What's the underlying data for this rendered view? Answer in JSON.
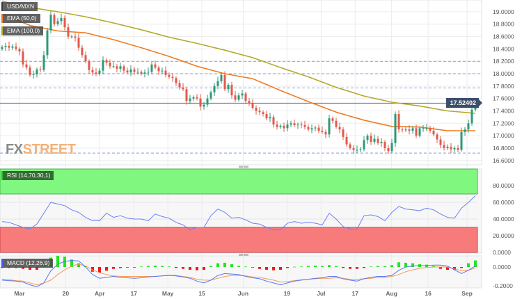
{
  "legend": {
    "symbol": "USD/MXN",
    "ema50": "EMA (50,0)",
    "ema100": "EMA (100,0)",
    "rsi": "RSI (14,70,30,1)",
    "macd": "MACD (12,26,9)"
  },
  "watermark": {
    "part1": "FX",
    "part2": "STREET"
  },
  "price_tag": "17.52402",
  "colors": {
    "up": "#2b9a77",
    "down": "#e05a4b",
    "ema50": "#f07c22",
    "ema100": "#b4a92a",
    "rsi_line": "#6b7ff5",
    "overbought": "#80f880",
    "oversold": "#f77b7b",
    "macd_line": "#5a78f0",
    "signal_line": "#f59a5a",
    "hist_up": "#1ee81e",
    "hist_down": "#f01a1a",
    "level_line": "#7f9fd8",
    "price_line": "#5a6f8f"
  },
  "chart_data": [
    {
      "type": "candlestick",
      "title": "USD/MXN",
      "xlim": [
        "2023-02-21",
        "2023-09-07"
      ],
      "ylim": [
        16.53,
        19.19
      ],
      "grid": true,
      "y_ticks": [
        "19.0000",
        "18.8000",
        "18.6000",
        "18.4000",
        "18.2000",
        "18.0000",
        "17.8000",
        "17.6000",
        "17.4000",
        "17.2000",
        "17.0000",
        "16.8000",
        "16.6000"
      ],
      "x_ticks": [
        {
          "label": "Mar",
          "date": "2023-03-01"
        },
        {
          "label": "20",
          "date": "2023-03-20"
        },
        {
          "label": "Apr",
          "date": "2023-04-03"
        },
        {
          "label": "17",
          "date": "2023-04-17"
        },
        {
          "label": "May",
          "date": "2023-05-01"
        },
        {
          "label": "15",
          "date": "2023-05-15"
        },
        {
          "label": "Jun",
          "date": "2023-06-01"
        },
        {
          "label": "19",
          "date": "2023-06-19"
        },
        {
          "label": "Jul",
          "date": "2023-07-03"
        },
        {
          "label": "17",
          "date": "2023-07-17"
        },
        {
          "label": "Aug",
          "date": "2023-08-01"
        },
        {
          "label": "16",
          "date": "2023-08-16"
        },
        {
          "label": "Sep",
          "date": "2023-09-01"
        }
      ],
      "first_open": 18.4,
      "closes": [
        18.43,
        18.45,
        18.42,
        18.44,
        18.4,
        18.36,
        18.15,
        18.1,
        17.98,
        17.99,
        18.07,
        18.06,
        18.3,
        18.7,
        18.95,
        18.8,
        18.85,
        18.9,
        18.75,
        18.6,
        18.6,
        18.58,
        18.42,
        18.3,
        18.2,
        18.06,
        18.02,
        18.0,
        18.05,
        18.22,
        18.18,
        18.12,
        18.12,
        18.08,
        18.12,
        18.05,
        18.02,
        18.07,
        18.03,
        18.03,
        18.0,
        18.02,
        18.03,
        18.15,
        18.1,
        18.04,
        18.05,
        17.98,
        17.95,
        17.93,
        17.85,
        17.78,
        17.75,
        17.56,
        17.6,
        17.62,
        17.6,
        17.47,
        17.5,
        17.6,
        17.7,
        17.8,
        17.88,
        17.98,
        17.75,
        17.82,
        17.65,
        17.58,
        17.65,
        17.68,
        17.56,
        17.52,
        17.45,
        17.4,
        17.38,
        17.35,
        17.28,
        17.3,
        17.18,
        17.14,
        17.16,
        17.12,
        17.18,
        17.2,
        17.17,
        17.18,
        17.17,
        17.14,
        17.1,
        17.12,
        17.13,
        17.08,
        17.06,
        17.02,
        17.28,
        17.24,
        17.14,
        17.1,
        16.98,
        16.86,
        16.8,
        16.77,
        16.77,
        16.78,
        16.93,
        17.0,
        16.9,
        16.95,
        16.88,
        16.9,
        16.8,
        16.75,
        16.88,
        17.35,
        17.1,
        17.09,
        17.1,
        17.08,
        17.12,
        17.0,
        17.12,
        17.12,
        17.12,
        17.08,
        17.02,
        16.94,
        16.85,
        16.8,
        16.82,
        16.78,
        16.8,
        16.77,
        17.06,
        17.1,
        17.2,
        17.42,
        17.524
      ],
      "ema50": [
        18.96,
        18.78,
        18.69,
        18.66,
        18.55,
        18.42,
        18.28,
        18.12,
        18.0,
        17.92,
        17.73,
        17.55,
        17.38,
        17.25,
        17.15,
        17.14,
        17.08,
        17.08
      ],
      "ema100": [
        19.17,
        19.07,
        19.0,
        18.92,
        18.82,
        18.71,
        18.59,
        18.49,
        18.38,
        18.26,
        18.1,
        17.95,
        17.78,
        17.64,
        17.54,
        17.48,
        17.4,
        17.36
      ],
      "levels": [
        18.2,
        18.0,
        17.77,
        16.72
      ],
      "last_price": 17.52402
    },
    {
      "type": "line",
      "title": "RSI (14,70,30,1)",
      "ylim": [
        0,
        100
      ],
      "overbought": 70,
      "oversold": 30,
      "y_ticks": [
        "80.0000",
        "60.0000",
        "40.0000",
        "20.0000",
        "0.0000"
      ],
      "values": [
        37,
        36,
        33,
        30,
        28,
        34,
        47,
        60,
        58,
        56,
        51,
        48,
        42,
        38,
        38,
        47,
        42,
        44,
        41,
        40,
        40,
        38,
        46,
        43,
        41,
        36,
        33,
        27,
        30,
        30,
        44,
        52,
        48,
        41,
        42,
        39,
        35,
        34,
        30,
        27,
        27,
        35,
        37,
        35,
        36,
        35,
        33,
        47,
        40,
        31,
        28,
        28,
        44,
        45,
        43,
        38,
        48,
        55,
        52,
        51,
        50,
        53,
        51,
        46,
        42,
        41,
        53,
        60,
        68
      ]
    },
    {
      "type": "bar+line",
      "title": "MACD (12,26,9)",
      "ylim": [
        -0.22,
        0.12
      ],
      "y_ticks": [
        "0.0000",
        "-0.2000"
      ],
      "macd": [
        -0.14,
        -0.145,
        -0.15,
        -0.16,
        -0.19,
        -0.21,
        -0.17,
        -0.04,
        0.03,
        0.06,
        0.07,
        0.065,
        0.0,
        -0.08,
        -0.12,
        -0.11,
        -0.1,
        -0.11,
        -0.115,
        -0.12,
        -0.115,
        -0.105,
        -0.1,
        -0.095,
        -0.09,
        -0.095,
        -0.105,
        -0.12,
        -0.15,
        -0.17,
        -0.14,
        -0.09,
        -0.07,
        -0.075,
        -0.08,
        -0.1,
        -0.115,
        -0.125,
        -0.15,
        -0.17,
        -0.19,
        -0.17,
        -0.15,
        -0.14,
        -0.13,
        -0.12,
        -0.115,
        -0.1,
        -0.1,
        -0.125,
        -0.14,
        -0.15,
        -0.125,
        -0.11,
        -0.1,
        -0.1,
        -0.09,
        -0.035,
        0.0,
        0.01,
        0.015,
        0.015,
        0.02,
        0.02,
        0.01,
        -0.03,
        -0.07,
        -0.035,
        0.01
      ],
      "signal": [
        -0.13,
        -0.135,
        -0.145,
        -0.15,
        -0.17,
        -0.19,
        -0.17,
        -0.14,
        -0.08,
        -0.03,
        0.01,
        0.03,
        0.01,
        -0.03,
        -0.06,
        -0.08,
        -0.095,
        -0.1,
        -0.1,
        -0.1,
        -0.1,
        -0.1,
        -0.1,
        -0.095,
        -0.09,
        -0.09,
        -0.1,
        -0.11,
        -0.13,
        -0.14,
        -0.14,
        -0.12,
        -0.1,
        -0.09,
        -0.09,
        -0.095,
        -0.105,
        -0.11,
        -0.125,
        -0.14,
        -0.16,
        -0.155,
        -0.145,
        -0.135,
        -0.13,
        -0.125,
        -0.12,
        -0.12,
        -0.115,
        -0.12,
        -0.13,
        -0.13,
        -0.125,
        -0.12,
        -0.11,
        -0.11,
        -0.1,
        -0.08,
        -0.05,
        -0.03,
        -0.015,
        -0.005,
        0.0,
        0.0,
        0.0,
        -0.02,
        -0.04,
        -0.035,
        -0.01
      ],
      "histogram": [
        -0.01,
        -0.01,
        -0.01,
        -0.02,
        -0.03,
        -0.03,
        0.03,
        0.1,
        0.12,
        0.11,
        0.08,
        0.04,
        0.01,
        -0.05,
        -0.06,
        -0.04,
        -0.02,
        -0.01,
        -0.005,
        -0.003,
        0.005,
        0.01,
        0.015,
        0.01,
        0.005,
        -0.01,
        -0.02,
        -0.03,
        -0.035,
        -0.03,
        0.01,
        0.04,
        0.045,
        0.03,
        0.01,
        0.005,
        -0.005,
        -0.02,
        -0.03,
        -0.035,
        -0.03,
        -0.01,
        0.003,
        0.005,
        0.01,
        0.015,
        0.01,
        0.02,
        0.01,
        -0.01,
        -0.02,
        -0.02,
        -0.01,
        0.005,
        0.01,
        0.01,
        0.02,
        0.05,
        0.045,
        0.04,
        0.03,
        0.025,
        0.01,
        -0.02,
        -0.03,
        -0.03,
        -0.01,
        0.04,
        0.07
      ]
    }
  ]
}
